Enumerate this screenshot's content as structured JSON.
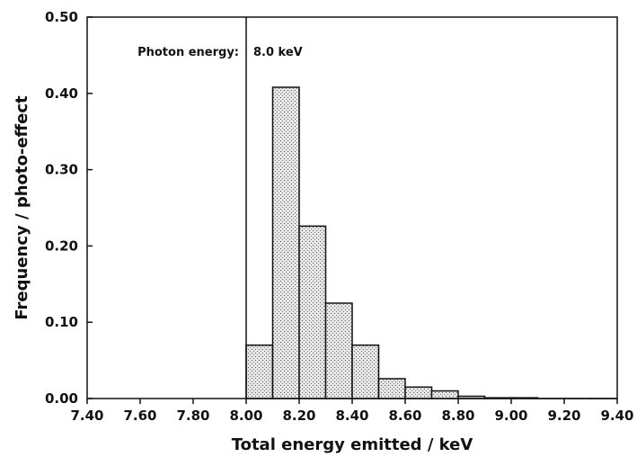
{
  "chart_data": {
    "type": "histogram",
    "xlabel": "Total energy emitted / keV",
    "ylabel": "Frequency / photo-effect",
    "bins": [
      8.0,
      8.1,
      8.2,
      8.3,
      8.4,
      8.5,
      8.6,
      8.7,
      8.8,
      8.9,
      9.0,
      9.1,
      9.2,
      9.3,
      9.4
    ],
    "values": [
      0.07,
      0.408,
      0.226,
      0.125,
      0.07,
      0.026,
      0.015,
      0.01,
      0.003,
      0.001,
      0.001,
      0,
      0,
      0
    ],
    "color": "#bdbdbd",
    "xlim": [
      7.4,
      9.4
    ],
    "ylim": [
      0,
      0.5
    ],
    "xticks": [
      {
        "value": 7.4,
        "label": "7.40"
      },
      {
        "value": 7.6,
        "label": "7.60"
      },
      {
        "value": 7.8,
        "label": "7.80"
      },
      {
        "value": 8.0,
        "label": "8.00"
      },
      {
        "value": 8.2,
        "label": "8.20"
      },
      {
        "value": 8.4,
        "label": "8.40"
      },
      {
        "value": 8.6,
        "label": "8.60"
      },
      {
        "value": 8.8,
        "label": "8.80"
      },
      {
        "value": 9.0,
        "label": "9.00"
      },
      {
        "value": 9.2,
        "label": "9.20"
      },
      {
        "value": 9.4,
        "label": "9.40"
      }
    ],
    "yticks": [
      {
        "value": 0,
        "label": "0.00"
      },
      {
        "value": 0.1,
        "label": "0.10"
      },
      {
        "value": 0.2,
        "label": "0.20"
      },
      {
        "value": 0.3,
        "label": "0.30"
      },
      {
        "value": 0.4,
        "label": "0.40"
      },
      {
        "value": 0.5,
        "label": "0.50"
      }
    ],
    "photon_energy": 8.0,
    "annotations": [
      "Photon energy:",
      "8.0 keV"
    ]
  }
}
